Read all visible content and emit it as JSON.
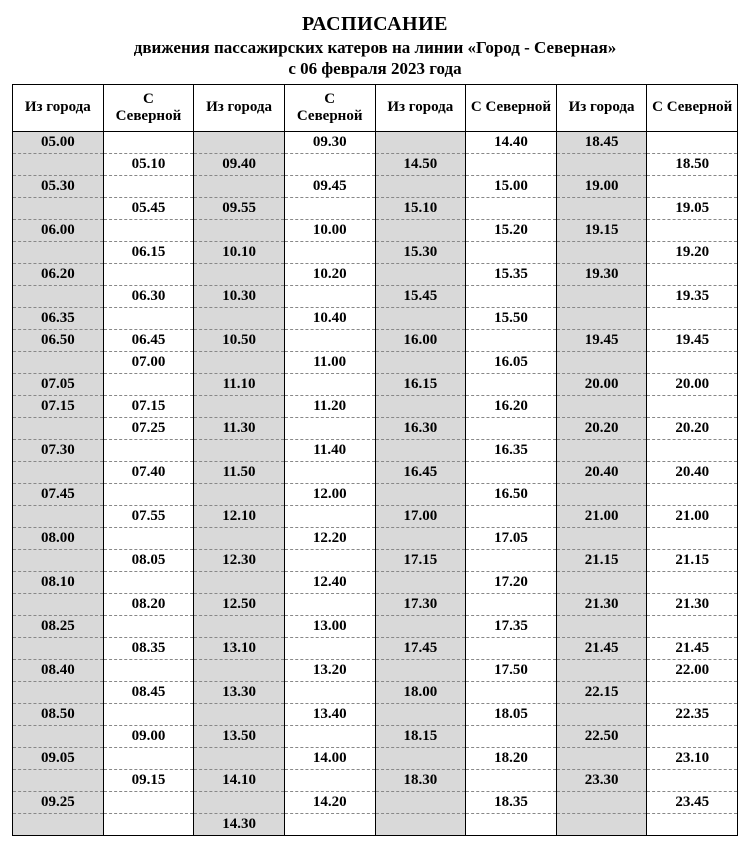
{
  "title": {
    "line1": "РАСПИСАНИЕ",
    "line2": "движения  пассажирских  катеров  на линии  «Город - Северная»",
    "line3": "с  06  февраля  2023  года"
  },
  "colors": {
    "shaded_bg": "#d9d9d9",
    "plain_bg": "#ffffff",
    "border": "#000000",
    "dash": "#888888"
  },
  "headers": [
    "Из города",
    "С Северной",
    "Из города",
    "С Северной",
    "Из города",
    "С Северной",
    "Из города",
    "С Северной"
  ],
  "column_shaded": [
    true,
    false,
    true,
    false,
    true,
    false,
    true,
    false
  ],
  "rows": [
    [
      "05.00",
      "",
      "",
      "09.30",
      "",
      "14.40",
      "18.45",
      ""
    ],
    [
      "",
      "05.10",
      "09.40",
      "",
      "14.50",
      "",
      "",
      "18.50"
    ],
    [
      "05.30",
      "",
      "",
      "09.45",
      "",
      "15.00",
      "19.00",
      ""
    ],
    [
      "",
      "05.45",
      "09.55",
      "",
      "15.10",
      "",
      "",
      "19.05"
    ],
    [
      "06.00",
      "",
      "",
      "10.00",
      "",
      "15.20",
      "19.15",
      ""
    ],
    [
      "",
      "06.15",
      "10.10",
      "",
      "15.30",
      "",
      "",
      "19.20"
    ],
    [
      "06.20",
      "",
      "",
      "10.20",
      "",
      "15.35",
      "19.30",
      ""
    ],
    [
      "",
      "06.30",
      "10.30",
      "",
      "15.45",
      "",
      "",
      "19.35"
    ],
    [
      "06.35",
      "",
      "",
      "10.40",
      "",
      "15.50",
      "",
      ""
    ],
    [
      "06.50",
      "06.45",
      "10.50",
      "",
      "16.00",
      "",
      "19.45",
      "19.45"
    ],
    [
      "",
      "07.00",
      "",
      "11.00",
      "",
      "16.05",
      "",
      ""
    ],
    [
      "07.05",
      "",
      "11.10",
      "",
      "16.15",
      "",
      "20.00",
      "20.00"
    ],
    [
      "07.15",
      "07.15",
      "",
      "11.20",
      "",
      "16.20",
      "",
      ""
    ],
    [
      "",
      "07.25",
      "11.30",
      "",
      "16.30",
      "",
      "20.20",
      "20.20"
    ],
    [
      "07.30",
      "",
      "",
      "11.40",
      "",
      "16.35",
      "",
      ""
    ],
    [
      "",
      "07.40",
      "11.50",
      "",
      "16.45",
      "",
      "20.40",
      "20.40"
    ],
    [
      "07.45",
      "",
      "",
      "12.00",
      "",
      "16.50",
      "",
      ""
    ],
    [
      "",
      "07.55",
      "12.10",
      "",
      "17.00",
      "",
      "21.00",
      "21.00"
    ],
    [
      "08.00",
      "",
      "",
      "12.20",
      "",
      "17.05",
      "",
      ""
    ],
    [
      "",
      "08.05",
      "12.30",
      "",
      "17.15",
      "",
      "21.15",
      "21.15"
    ],
    [
      "08.10",
      "",
      "",
      "12.40",
      "",
      "17.20",
      "",
      ""
    ],
    [
      "",
      "08.20",
      "12.50",
      "",
      "17.30",
      "",
      "21.30",
      "21.30"
    ],
    [
      "08.25",
      "",
      "",
      "13.00",
      "",
      "17.35",
      "",
      ""
    ],
    [
      "",
      "08.35",
      "13.10",
      "",
      "17.45",
      "",
      "21.45",
      "21.45"
    ],
    [
      "08.40",
      "",
      "",
      "13.20",
      "",
      "17.50",
      "",
      "22.00"
    ],
    [
      "",
      "08.45",
      "13.30",
      "",
      "18.00",
      "",
      "22.15",
      ""
    ],
    [
      "08.50",
      "",
      "",
      "13.40",
      "",
      "18.05",
      "",
      "22.35"
    ],
    [
      "",
      "09.00",
      "13.50",
      "",
      "18.15",
      "",
      "22.50",
      ""
    ],
    [
      "09.05",
      "",
      "",
      "14.00",
      "",
      "18.20",
      "",
      "23.10"
    ],
    [
      "",
      "09.15",
      "14.10",
      "",
      "18.30",
      "",
      "23.30",
      ""
    ],
    [
      "09.25",
      "",
      "",
      "14.20",
      "",
      "18.35",
      "",
      "23.45"
    ],
    [
      "",
      "",
      "14.30",
      "",
      "",
      "",
      "",
      ""
    ]
  ]
}
